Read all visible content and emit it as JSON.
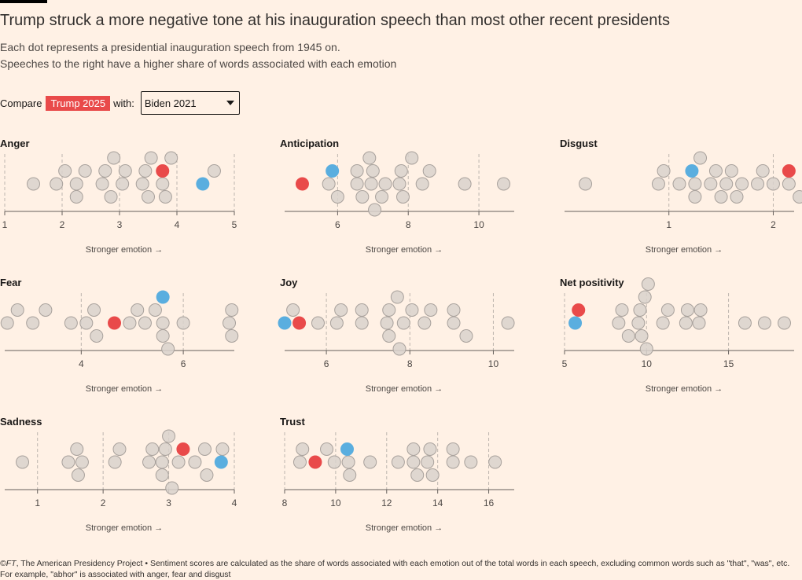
{
  "header": {
    "title": "Trump struck a more negative tone at his inauguration speech than most other recent presidents",
    "subtitle_lines": [
      "Each dot represents a presidential inauguration speech from 1945 on.",
      "Speeches to the right have a higher share of words associated with each emotion"
    ]
  },
  "compare": {
    "label": "Compare",
    "highlight": "Trump 2025",
    "with_label": "with:",
    "selected": "Biden 2021"
  },
  "colors": {
    "background": "#fff1e5",
    "dot": "#d9d2cc",
    "dot_stroke": "#a8a19c",
    "trump": "#e94a4a",
    "compare": "#5aaedf",
    "axis": "#66605c",
    "grid": "#bdb5ae"
  },
  "axis_caption": "Stronger emotion →",
  "footer": {
    "source_prefix": "©FT",
    "text": ", The American Presidency Project • Sentiment scores are calculated as the share of words associated with each emotion out of the total words in each speech, excluding common words such as \"that\", \"was\", etc. For example, \"abhor\" is associated with anger, fear and disgust"
  },
  "chart_data": [
    {
      "type": "scatter",
      "title": "Anger",
      "xlim": [
        1,
        5
      ],
      "ticks": [
        1,
        2,
        3,
        4,
        5
      ],
      "trump": 3.75,
      "compare": 4.45,
      "others": [
        1.5,
        1.9,
        2.05,
        2.25,
        2.25,
        2.4,
        2.7,
        2.75,
        2.85,
        2.9,
        3.05,
        3.1,
        3.45,
        3.5,
        3.55,
        3.4,
        3.75,
        3.8,
        3.9,
        4.65
      ]
    },
    {
      "type": "scatter",
      "title": "Anticipation",
      "xlim": [
        4.5,
        11
      ],
      "ticks": [
        6,
        8,
        10
      ],
      "trump": 5.0,
      "compare": 5.85,
      "others": [
        5.75,
        6.0,
        6.55,
        6.55,
        6.7,
        6.9,
        6.95,
        7.0,
        7.05,
        7.25,
        7.35,
        7.75,
        7.8,
        7.85,
        8.1,
        8.4,
        8.6,
        9.6,
        10.7
      ]
    },
    {
      "type": "scatter",
      "title": "Disgust",
      "xlim": [
        0,
        2.2
      ],
      "ticks": [
        1,
        2
      ],
      "trump": 2.15,
      "compare": 1.22,
      "others": [
        0.2,
        0.9,
        0.95,
        1.1,
        1.25,
        1.25,
        1.3,
        1.4,
        1.45,
        1.5,
        1.55,
        1.6,
        1.65,
        1.7,
        1.85,
        1.9,
        2.0,
        2.15,
        2.25
      ]
    },
    {
      "type": "scatter",
      "title": "Fear",
      "xlim": [
        2.5,
        7
      ],
      "ticks": [
        4,
        6
      ],
      "trump": 4.65,
      "compare": 5.6,
      "others": [
        2.55,
        2.75,
        3.05,
        3.3,
        3.8,
        4.1,
        4.25,
        4.3,
        4.95,
        5.1,
        5.25,
        5.45,
        5.6,
        5.6,
        5.7,
        6.0,
        6.9,
        6.95,
        6.95
      ]
    },
    {
      "type": "scatter",
      "title": "Joy",
      "xlim": [
        5,
        10.5
      ],
      "ticks": [
        6,
        8,
        10
      ],
      "trump": 5.35,
      "compare": 5.0,
      "others": [
        5.2,
        5.8,
        6.25,
        6.35,
        6.85,
        6.85,
        7.45,
        7.5,
        7.5,
        7.7,
        7.75,
        7.85,
        8.05,
        8.35,
        8.5,
        9.05,
        9.05,
        9.35,
        10.35
      ]
    },
    {
      "type": "scatter",
      "title": "Net positivity",
      "xlim": [
        5,
        19
      ],
      "ticks": [
        5,
        10,
        15
      ],
      "trump": 5.85,
      "compare": 5.65,
      "others": [
        8.3,
        8.5,
        8.9,
        9.5,
        9.6,
        9.7,
        9.9,
        10.0,
        10.1,
        11.0,
        11.3,
        12.4,
        12.5,
        13.2,
        13.3,
        16.0,
        17.2,
        18.4
      ]
    },
    {
      "type": "scatter",
      "title": "Sadness",
      "xlim": [
        0.5,
        4
      ],
      "ticks": [
        1,
        2,
        3,
        4
      ],
      "trump": 3.22,
      "compare": 3.8,
      "others": [
        0.77,
        1.47,
        1.6,
        1.62,
        1.68,
        2.18,
        2.25,
        2.7,
        2.75,
        2.9,
        2.9,
        2.95,
        3.0,
        3.05,
        3.15,
        3.4,
        3.55,
        3.58,
        3.82
      ]
    },
    {
      "type": "scatter",
      "title": "Trust",
      "xlim": [
        8,
        17
      ],
      "ticks": [
        8,
        10,
        12,
        14,
        16
      ],
      "trump": 9.2,
      "compare": 10.45,
      "others": [
        8.6,
        8.7,
        9.65,
        9.95,
        10.5,
        10.55,
        11.35,
        12.45,
        13.05,
        13.05,
        13.2,
        13.6,
        13.7,
        13.8,
        14.6,
        14.6,
        15.3,
        16.25
      ]
    }
  ]
}
